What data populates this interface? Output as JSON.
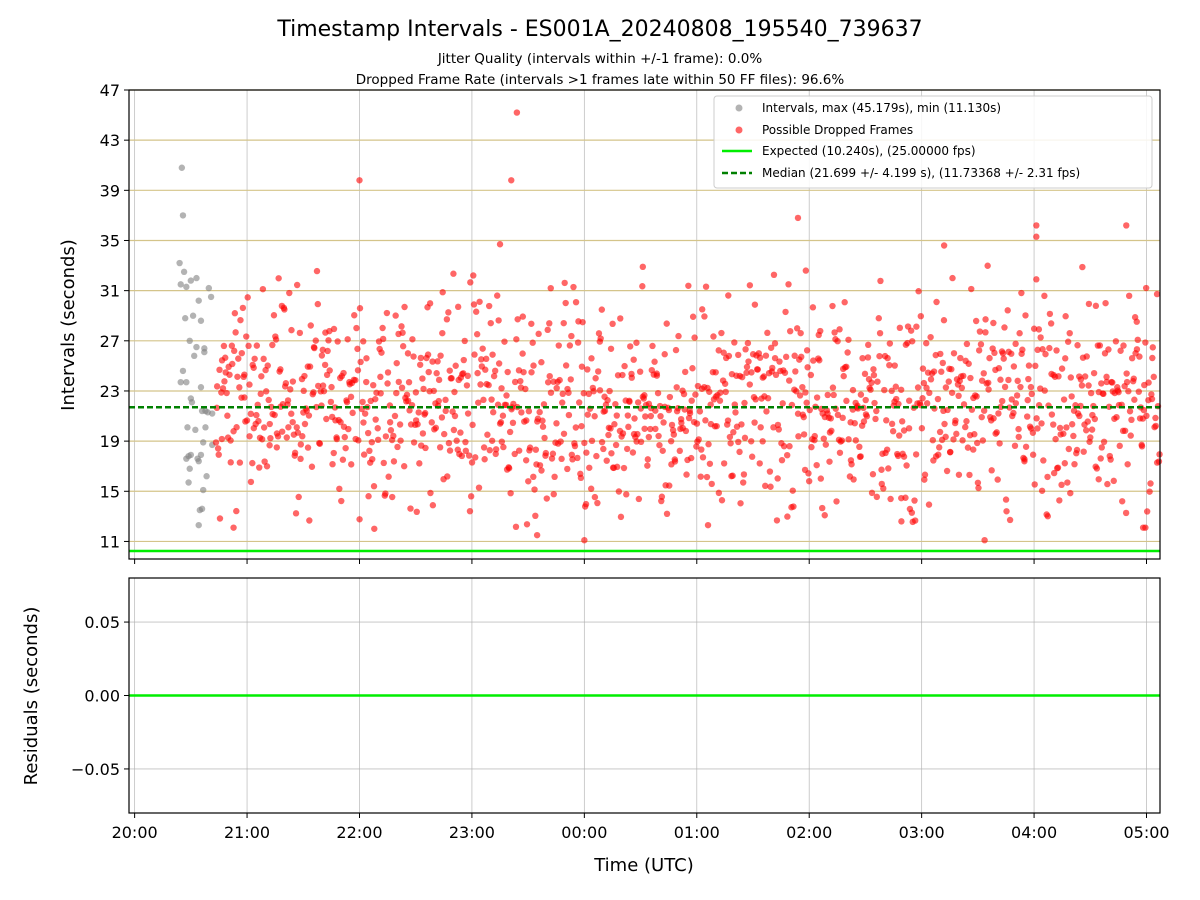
{
  "chart_data": [
    {
      "type": "scatter",
      "title": "Timestamp Intervals - ES001A_20240808_195540_739637",
      "subtitle_lines": [
        "Jitter Quality (intervals within +/-1 frame): 0.0%",
        "Dropped Frame Rate (intervals >1 frames late within 50 FF files): 96.6%"
      ],
      "xlabel": "",
      "ylabel": "Intervals (seconds)",
      "x_unit": "hours after 20:00 UTC",
      "xlim": [
        -0.05,
        9.12
      ],
      "ylim": [
        9.6,
        47
      ],
      "yticks": [
        11,
        15,
        19,
        23,
        27,
        31,
        35,
        39,
        43,
        47
      ],
      "xticks": [
        0,
        1,
        2,
        3,
        4,
        5,
        6,
        7,
        8,
        9
      ],
      "xtick_labels": [
        "20:00",
        "21:00",
        "22:00",
        "23:00",
        "00:00",
        "01:00",
        "02:00",
        "03:00",
        "04:00",
        "05:00"
      ],
      "grid": {
        "x": true,
        "y": true,
        "y_color": "#d4c48a"
      },
      "legend_position": "top-right",
      "series": [
        {
          "name": "Intervals, max (45.179s), min (11.130s)",
          "kind": "points",
          "color": "#808080",
          "x_range": [
            0.38,
            0.72
          ],
          "y_range": [
            12.3,
            40.8
          ],
          "points": [
            [
              0.42,
              40.8
            ],
            [
              0.43,
              37.0
            ],
            [
              0.4,
              33.2
            ],
            [
              0.44,
              32.5
            ],
            [
              0.5,
              31.8
            ],
            [
              0.41,
              31.5
            ],
            [
              0.46,
              31.3
            ],
            [
              0.55,
              32.0
            ],
            [
              0.57,
              30.2
            ],
            [
              0.66,
              31.2
            ],
            [
              0.68,
              30.5
            ],
            [
              0.45,
              28.8
            ],
            [
              0.52,
              29.0
            ],
            [
              0.59,
              28.6
            ],
            [
              0.49,
              27.0
            ],
            [
              0.62,
              26.4
            ],
            [
              0.62,
              26.1
            ],
            [
              0.53,
              25.8
            ],
            [
              0.55,
              26.5
            ],
            [
              0.43,
              24.6
            ],
            [
              0.41,
              23.7
            ],
            [
              0.46,
              23.7
            ],
            [
              0.59,
              23.3
            ],
            [
              0.5,
              22.4
            ],
            [
              0.51,
              22.1
            ],
            [
              0.6,
              21.4
            ],
            [
              0.63,
              21.4
            ],
            [
              0.65,
              21.3
            ],
            [
              0.69,
              21.2
            ],
            [
              0.47,
              20.1
            ],
            [
              0.54,
              19.9
            ],
            [
              0.63,
              20.1
            ],
            [
              0.61,
              18.9
            ],
            [
              0.69,
              18.7
            ],
            [
              0.48,
              17.8
            ],
            [
              0.5,
              17.9
            ],
            [
              0.57,
              17.4
            ],
            [
              0.59,
              17.9
            ],
            [
              0.56,
              17.6
            ],
            [
              0.46,
              17.6
            ],
            [
              0.49,
              16.8
            ],
            [
              0.64,
              16.2
            ],
            [
              0.48,
              15.7
            ],
            [
              0.61,
              15.1
            ],
            [
              0.58,
              13.5
            ],
            [
              0.6,
              13.6
            ],
            [
              0.57,
              12.3
            ]
          ]
        },
        {
          "name": "Possible Dropped Frames",
          "kind": "points",
          "color": "#ff0000",
          "count": 1330,
          "x_range": [
            0.72,
            9.12
          ],
          "y_range": [
            11.1,
            45.2
          ],
          "points": [
            [
              2.0,
              39.8
            ],
            [
              3.35,
              39.8
            ],
            [
              3.4,
              45.2
            ],
            [
              3.25,
              34.7
            ],
            [
              5.9,
              36.8
            ],
            [
              7.2,
              34.6
            ],
            [
              8.02,
              36.2
            ],
            [
              8.02,
              35.3
            ],
            [
              8.82,
              36.2
            ],
            [
              4.0,
              11.1
            ],
            [
              3.58,
              11.5
            ],
            [
              7.56,
              11.1
            ],
            [
              0.88,
              12.1
            ],
            [
              5.1,
              12.3
            ],
            [
              6.82,
              12.6
            ],
            [
              8.97,
              12.1
            ],
            [
              8.99,
              12.1
            ],
            [
              8.02,
              31.9
            ],
            [
              4.52,
              32.9
            ],
            [
              5.97,
              32.6
            ]
          ],
          "cloud": {
            "y_mean": 21.9,
            "y_sd": 4.2,
            "y_min": 12.0,
            "y_max": 33.0,
            "reproduction_points_rendered": 1330
          }
        },
        {
          "name": "Expected (10.240s), (25.00000 fps)",
          "kind": "hline",
          "y": 10.24,
          "color": "#00ee00",
          "style": "solid"
        },
        {
          "name": "Median (21.699 +/- 4.199 s), (11.73368 +/- 2.31 fps)",
          "kind": "hline",
          "y": 21.699,
          "color": "#008000",
          "style": "dashed"
        }
      ]
    },
    {
      "type": "line",
      "title": "",
      "xlabel": "Time (UTC)",
      "ylabel": "Residuals (seconds)",
      "xlim": [
        -0.05,
        9.12
      ],
      "ylim": [
        -0.08,
        0.08
      ],
      "yticks": [
        0.05,
        0.0,
        -0.05
      ],
      "ytick_labels": [
        "0.05",
        "0.00",
        "−0.05"
      ],
      "xticks": [
        0,
        1,
        2,
        3,
        4,
        5,
        6,
        7,
        8,
        9
      ],
      "xtick_labels": [
        "20:00",
        "21:00",
        "22:00",
        "23:00",
        "00:00",
        "01:00",
        "02:00",
        "03:00",
        "04:00",
        "05:00"
      ],
      "grid": {
        "x": true,
        "y": true,
        "y_color": "#b0b0b0"
      },
      "series": [
        {
          "kind": "hline",
          "y": 0.0,
          "color": "#00ee00",
          "style": "solid"
        }
      ]
    }
  ]
}
